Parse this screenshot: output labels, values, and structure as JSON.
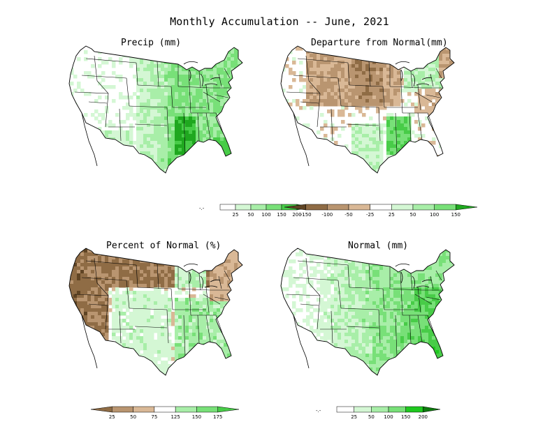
{
  "title": "Monthly Accumulation -- June, 2021",
  "colors": {
    "boundary": "#000000",
    "green1": "#d4f7d4",
    "green2": "#a8eea8",
    "green3": "#78e078",
    "green4": "#48cc48",
    "green5": "#1fa81f",
    "green6": "#0e7a0e",
    "brown1": "#d9b896",
    "brown2": "#b99570",
    "brown3": "#8f6c45",
    "brown4": "#5f4424"
  },
  "panels": [
    {
      "title": "Precip (mm)",
      "legend": {
        "ticks": [
          "25",
          "50",
          "100",
          "150",
          "200"
        ],
        "bins": [
          "#ffffff",
          "#d4f7d4",
          "#a8eea8",
          "#78e078",
          "#48cc48",
          "#1fa81f"
        ]
      }
    },
    {
      "title": "Departure from Normal(mm)",
      "legend": {
        "ticks": [
          "-150",
          "-100",
          "-50",
          "-25",
          "25",
          "50",
          "100",
          "150"
        ],
        "bins": [
          "#5f4424",
          "#8f6c45",
          "#b99570",
          "#d9b896",
          "#ffffff",
          "#d4f7d4",
          "#a8eea8",
          "#78e078",
          "#1fa81f"
        ]
      }
    },
    {
      "title": "Percent of Normal (%)",
      "legend": {
        "ticks": [
          "25",
          "50",
          "75",
          "125",
          "150",
          "175"
        ],
        "bins": [
          "#8f6c45",
          "#b99570",
          "#d9b896",
          "#ffffff",
          "#a8eea8",
          "#78e078",
          "#48cc48"
        ]
      }
    },
    {
      "title": "Normal (mm)",
      "legend": {
        "ticks": [
          "25",
          "50",
          "100",
          "150",
          "200"
        ],
        "bins": [
          "#ffffff",
          "#d4f7d4",
          "#a8eea8",
          "#78e078",
          "#1fc81f",
          "#0e7a0e"
        ]
      }
    }
  ]
}
